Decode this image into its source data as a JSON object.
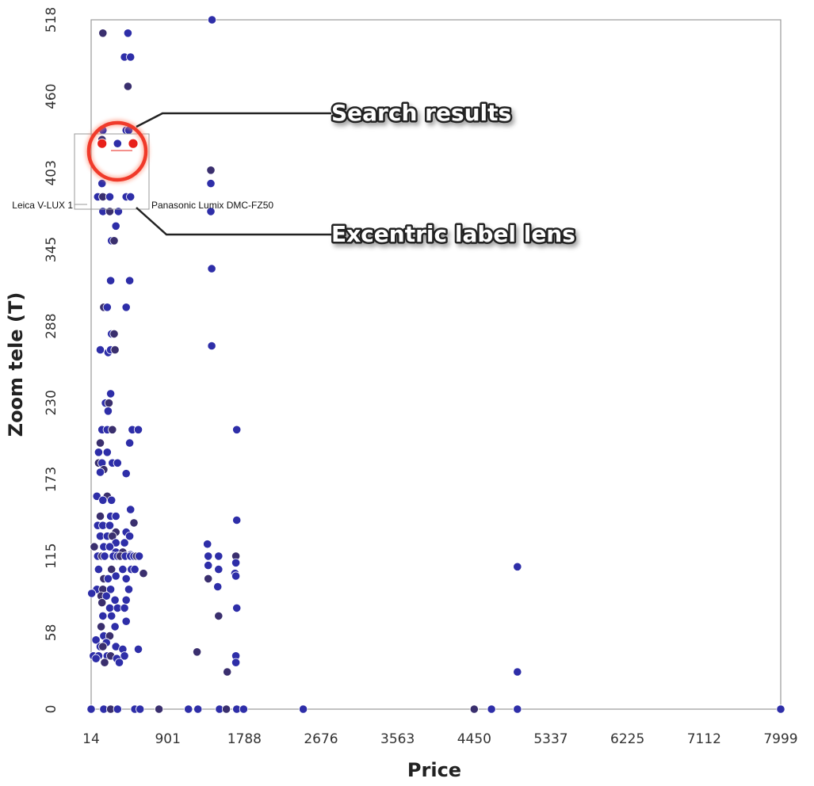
{
  "chart_data": {
    "type": "scatter",
    "xlabel": "Price",
    "ylabel": "Zoom tele (T)",
    "xlim": [
      14,
      7999
    ],
    "ylim": [
      0,
      518
    ],
    "x_ticks": [
      "14",
      "901",
      "1788",
      "2676",
      "3563",
      "4450",
      "5337",
      "6225",
      "7112",
      "7999"
    ],
    "y_ticks": [
      "0",
      "58",
      "115",
      "173",
      "230",
      "288",
      "345",
      "403",
      "460",
      "518"
    ],
    "grid": false,
    "colors": {
      "point": "#2e2ea8",
      "point_dark": "#3a2f6e",
      "highlight": "#e8201a",
      "ring": "#f03a2a"
    },
    "lens": {
      "left_label": "Leica V-LUX 1",
      "right_label": "Panasonic Lumix DMC-FZ50",
      "highlighted": [
        {
          "x": 140,
          "y": 425
        },
        {
          "x": 500,
          "y": 425
        }
      ]
    },
    "annotations": {
      "search": "Search results",
      "lens": "Excentric label lens"
    },
    "points": [
      [
        1414,
        518
      ],
      [
        150,
        508
      ],
      [
        440,
        508
      ],
      [
        400,
        490
      ],
      [
        470,
        490
      ],
      [
        440,
        468
      ],
      [
        150,
        435
      ],
      [
        420,
        435
      ],
      [
        450,
        435
      ],
      [
        140,
        428
      ],
      [
        320,
        425
      ],
      [
        140,
        395
      ],
      [
        90,
        385
      ],
      [
        150,
        385
      ],
      [
        230,
        385
      ],
      [
        420,
        385
      ],
      [
        470,
        385
      ],
      [
        1400,
        405
      ],
      [
        1400,
        395
      ],
      [
        1400,
        374
      ],
      [
        150,
        374
      ],
      [
        230,
        374
      ],
      [
        330,
        374
      ],
      [
        300,
        363
      ],
      [
        250,
        352
      ],
      [
        280,
        352
      ],
      [
        1410,
        331
      ],
      [
        240,
        322
      ],
      [
        460,
        322
      ],
      [
        160,
        302
      ],
      [
        200,
        302
      ],
      [
        420,
        302
      ],
      [
        250,
        282
      ],
      [
        280,
        282
      ],
      [
        120,
        270
      ],
      [
        210,
        268
      ],
      [
        240,
        270
      ],
      [
        290,
        270
      ],
      [
        1410,
        273
      ],
      [
        240,
        237
      ],
      [
        180,
        230
      ],
      [
        220,
        230
      ],
      [
        210,
        224
      ],
      [
        140,
        210
      ],
      [
        200,
        210
      ],
      [
        260,
        210
      ],
      [
        490,
        210
      ],
      [
        560,
        210
      ],
      [
        1700,
        210
      ],
      [
        120,
        200
      ],
      [
        460,
        200
      ],
      [
        100,
        193
      ],
      [
        200,
        193
      ],
      [
        100,
        185
      ],
      [
        140,
        185
      ],
      [
        260,
        185
      ],
      [
        320,
        185
      ],
      [
        160,
        180
      ],
      [
        120,
        178
      ],
      [
        420,
        177
      ],
      [
        80,
        160
      ],
      [
        200,
        160
      ],
      [
        150,
        157
      ],
      [
        250,
        157
      ],
      [
        240,
        145
      ],
      [
        120,
        145
      ],
      [
        300,
        145
      ],
      [
        470,
        150
      ],
      [
        1700,
        142
      ],
      [
        510,
        140
      ],
      [
        90,
        138
      ],
      [
        150,
        138
      ],
      [
        230,
        138
      ],
      [
        300,
        133
      ],
      [
        420,
        133
      ],
      [
        120,
        130
      ],
      [
        200,
        130
      ],
      [
        260,
        130
      ],
      [
        300,
        125
      ],
      [
        400,
        125
      ],
      [
        460,
        130
      ],
      [
        50,
        122
      ],
      [
        160,
        122
      ],
      [
        230,
        122
      ],
      [
        300,
        118
      ],
      [
        380,
        118
      ],
      [
        470,
        116
      ],
      [
        1360,
        124
      ],
      [
        90,
        115
      ],
      [
        140,
        115
      ],
      [
        170,
        115
      ],
      [
        270,
        115
      ],
      [
        320,
        115
      ],
      [
        350,
        115
      ],
      [
        410,
        115
      ],
      [
        470,
        115
      ],
      [
        510,
        115
      ],
      [
        540,
        115
      ],
      [
        570,
        115
      ],
      [
        1370,
        115
      ],
      [
        1490,
        115
      ],
      [
        1690,
        115
      ],
      [
        1690,
        110
      ],
      [
        4950,
        107
      ],
      [
        100,
        105
      ],
      [
        250,
        105
      ],
      [
        380,
        105
      ],
      [
        480,
        105
      ],
      [
        520,
        105
      ],
      [
        620,
        102
      ],
      [
        1370,
        108
      ],
      [
        1490,
        105
      ],
      [
        1680,
        102
      ],
      [
        160,
        98
      ],
      [
        210,
        98
      ],
      [
        300,
        100
      ],
      [
        420,
        98
      ],
      [
        1370,
        98
      ],
      [
        1480,
        92
      ],
      [
        1690,
        100
      ],
      [
        80,
        90
      ],
      [
        150,
        90
      ],
      [
        240,
        90
      ],
      [
        450,
        90
      ],
      [
        20,
        87
      ],
      [
        130,
        85
      ],
      [
        190,
        85
      ],
      [
        290,
        82
      ],
      [
        420,
        82
      ],
      [
        140,
        80
      ],
      [
        230,
        76
      ],
      [
        320,
        76
      ],
      [
        400,
        76
      ],
      [
        1490,
        70
      ],
      [
        1700,
        76
      ],
      [
        150,
        70
      ],
      [
        250,
        70
      ],
      [
        130,
        62
      ],
      [
        290,
        62
      ],
      [
        420,
        66
      ],
      [
        160,
        55
      ],
      [
        230,
        55
      ],
      [
        70,
        52
      ],
      [
        190,
        50
      ],
      [
        120,
        47
      ],
      [
        150,
        47
      ],
      [
        300,
        47
      ],
      [
        380,
        45
      ],
      [
        560,
        45
      ],
      [
        1240,
        43
      ],
      [
        40,
        40
      ],
      [
        100,
        40
      ],
      [
        200,
        40
      ],
      [
        240,
        40
      ],
      [
        400,
        40
      ],
      [
        1690,
        40
      ],
      [
        70,
        38
      ],
      [
        170,
        35
      ],
      [
        310,
        38
      ],
      [
        340,
        35
      ],
      [
        1690,
        35
      ],
      [
        1590,
        28
      ],
      [
        4950,
        28
      ],
      [
        14,
        0
      ],
      [
        160,
        0
      ],
      [
        240,
        0
      ],
      [
        320,
        0
      ],
      [
        520,
        0
      ],
      [
        580,
        0
      ],
      [
        800,
        0
      ],
      [
        1140,
        0
      ],
      [
        1250,
        0
      ],
      [
        1500,
        0
      ],
      [
        1580,
        0
      ],
      [
        1700,
        0
      ],
      [
        1780,
        0
      ],
      [
        2470,
        0
      ],
      [
        4450,
        0
      ],
      [
        4650,
        0
      ],
      [
        4950,
        0
      ],
      [
        7999,
        0
      ]
    ]
  }
}
